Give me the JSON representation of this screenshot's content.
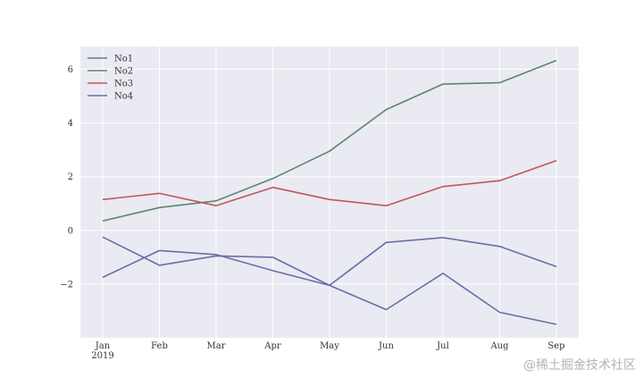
{
  "chart_data": {
    "type": "line",
    "categories": [
      "Jan\n2019",
      "Feb",
      "Mar",
      "Apr",
      "May",
      "Jun",
      "Jul",
      "Aug",
      "Sep"
    ],
    "ylim": [
      -4.0,
      6.85
    ],
    "yticks": [
      {
        "value": -2,
        "label": "−2"
      },
      {
        "value": 0,
        "label": "0"
      },
      {
        "value": 2,
        "label": "2"
      },
      {
        "value": 4,
        "label": "4"
      },
      {
        "value": 6,
        "label": "6"
      }
    ],
    "grid": true,
    "legend_position": "top-left",
    "title": "",
    "xlabel": "",
    "ylabel": "",
    "series": [
      {
        "name": "No1",
        "color": "#6b6ea6",
        "values": [
          -1.75,
          -0.75,
          -0.9,
          -1.5,
          -2.05,
          -0.45,
          -0.27,
          -0.6,
          -1.35
        ]
      },
      {
        "name": "No2",
        "color": "#5a876c",
        "values": [
          0.35,
          0.85,
          1.1,
          1.93,
          2.95,
          4.5,
          5.45,
          5.5,
          6.33
        ]
      },
      {
        "name": "No3",
        "color": "#c1565a",
        "values": [
          1.15,
          1.38,
          0.92,
          1.6,
          1.15,
          0.92,
          1.63,
          1.85,
          2.6
        ]
      },
      {
        "name": "No4",
        "color": "#6b6ea6",
        "values": [
          -0.25,
          -1.3,
          -0.95,
          -1.0,
          -2.05,
          -2.95,
          -1.6,
          -3.05,
          -3.5
        ]
      }
    ]
  },
  "watermark": "@稀土掘金技术社区"
}
